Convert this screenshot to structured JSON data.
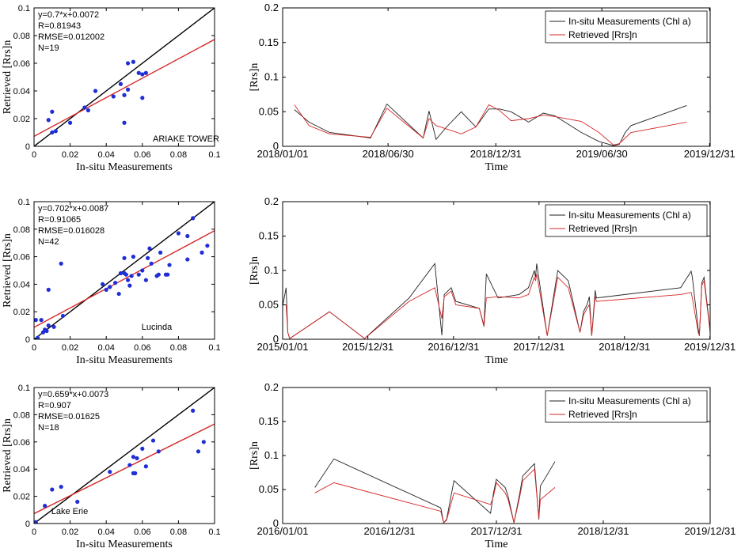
{
  "colors": {
    "insitu": "#222222",
    "retrieved": "#d62728",
    "points": "#1f2ed6",
    "identity": "#000000",
    "fit": "#d62728"
  },
  "chart_data": [
    {
      "type": "scatter",
      "xlabel": "In-situ Measurements",
      "ylabel": "Retrieved [Rrs]n",
      "xlim": [
        0,
        0.1
      ],
      "ylim": [
        0,
        0.1
      ],
      "xticks": [
        "0",
        "0.02",
        "0.04",
        "0.06",
        "0.08",
        "0.1"
      ],
      "yticks": [
        "0",
        "0.02",
        "0.04",
        "0.06",
        "0.08",
        "0.1"
      ],
      "xtick_values": [
        0,
        0.02,
        0.04,
        0.06,
        0.08,
        0.1
      ],
      "ytick_values": [
        0,
        0.02,
        0.04,
        0.06,
        0.08,
        0.1
      ],
      "stats": [
        "y=0.7*x+0.0072",
        "R=0.81943",
        "RMSE=0.012002",
        "N=19"
      ],
      "site": "ARIAKE TOWER",
      "fit": {
        "slope": 0.7,
        "intercept": 0.0072
      },
      "points": [
        [
          0.008,
          0.019
        ],
        [
          0.01,
          0.025
        ],
        [
          0.01,
          0.01
        ],
        [
          0.012,
          0.011
        ],
        [
          0.02,
          0.017
        ],
        [
          0.028,
          0.028
        ],
        [
          0.03,
          0.026
        ],
        [
          0.034,
          0.04
        ],
        [
          0.044,
          0.036
        ],
        [
          0.048,
          0.045
        ],
        [
          0.05,
          0.037
        ],
        [
          0.052,
          0.041
        ],
        [
          0.05,
          0.017
        ],
        [
          0.052,
          0.06
        ],
        [
          0.055,
          0.061
        ],
        [
          0.058,
          0.053
        ],
        [
          0.06,
          0.035
        ],
        [
          0.062,
          0.053
        ],
        [
          0.06,
          0.052
        ]
      ]
    },
    {
      "type": "line",
      "xlabel": "Time",
      "ylabel": "[Rrs]n",
      "ylim": [
        0,
        0.2
      ],
      "yticks": [
        "0",
        "0.05",
        "0.1",
        "0.15",
        "0.2"
      ],
      "ytick_values": [
        0,
        0.05,
        0.1,
        0.15,
        0.2
      ],
      "xlim": [
        0,
        730
      ],
      "xticks": [
        "2018/01/01",
        "2018/06/30",
        "2018/12/31",
        "2019/06/30",
        "2019/12/31"
      ],
      "xtick_values": [
        0,
        180,
        364,
        545,
        729
      ],
      "legend": [
        "In-situ Measurements (Chl a)",
        "Retrieved [Rrs]n"
      ],
      "series": [
        {
          "name": "In-situ Measurements (Chl a)",
          "x": [
            20,
            45,
            80,
            150,
            178,
            240,
            250,
            262,
            280,
            305,
            330,
            352,
            370,
            390,
            420,
            445,
            465,
            510,
            540,
            565,
            575,
            585,
            595,
            690
          ],
          "y": [
            0.053,
            0.035,
            0.02,
            0.012,
            0.061,
            0.012,
            0.051,
            0.01,
            0.028,
            0.05,
            0.028,
            0.054,
            0.054,
            0.05,
            0.035,
            0.048,
            0.044,
            0.02,
            0.007,
            0.001,
            0.003,
            0.02,
            0.03,
            0.059
          ]
        },
        {
          "name": "Retrieved [Rrs]n",
          "x": [
            20,
            45,
            80,
            150,
            178,
            240,
            250,
            262,
            280,
            305,
            330,
            352,
            370,
            390,
            420,
            445,
            465,
            510,
            540,
            565,
            575,
            585,
            595,
            690
          ],
          "y": [
            0.06,
            0.03,
            0.018,
            0.013,
            0.055,
            0.012,
            0.04,
            0.03,
            0.025,
            0.018,
            0.028,
            0.06,
            0.052,
            0.037,
            0.04,
            0.045,
            0.043,
            0.036,
            0.02,
            0.002,
            0.004,
            0.012,
            0.02,
            0.035
          ]
        }
      ]
    },
    {
      "type": "scatter",
      "xlabel": "In-situ Measurements",
      "ylabel": "Retrieved [Rrs]n",
      "xlim": [
        0,
        0.1
      ],
      "ylim": [
        0,
        0.1
      ],
      "xticks": [
        "0",
        "0.02",
        "0.04",
        "0.06",
        "0.08",
        "0.1"
      ],
      "yticks": [
        "0",
        "0.02",
        "0.04",
        "0.06",
        "0.08",
        "0.1"
      ],
      "xtick_values": [
        0,
        0.02,
        0.04,
        0.06,
        0.08,
        0.1
      ],
      "ytick_values": [
        0,
        0.02,
        0.04,
        0.06,
        0.08,
        0.1
      ],
      "stats": [
        "y=0.702*x+0.0087",
        "R=0.91065",
        "RMSE=0.016028",
        "N=42"
      ],
      "site": "Lucinda",
      "fit": {
        "slope": 0.702,
        "intercept": 0.0087
      },
      "points": [
        [
          0.001,
          0.014
        ],
        [
          0.002,
          0.001
        ],
        [
          0.004,
          0.014
        ],
        [
          0.005,
          0.005
        ],
        [
          0.006,
          0.007
        ],
        [
          0.007,
          0.006
        ],
        [
          0.008,
          0.036
        ],
        [
          0.008,
          0.01
        ],
        [
          0.011,
          0.009
        ],
        [
          0.015,
          0.055
        ],
        [
          0.016,
          0.017
        ],
        [
          0.038,
          0.04
        ],
        [
          0.04,
          0.036
        ],
        [
          0.042,
          0.038
        ],
        [
          0.045,
          0.041
        ],
        [
          0.047,
          0.033
        ],
        [
          0.048,
          0.048
        ],
        [
          0.05,
          0.059
        ],
        [
          0.05,
          0.048
        ],
        [
          0.051,
          0.047
        ],
        [
          0.052,
          0.043
        ],
        [
          0.053,
          0.039
        ],
        [
          0.054,
          0.046
        ],
        [
          0.055,
          0.06
        ],
        [
          0.058,
          0.047
        ],
        [
          0.06,
          0.05
        ],
        [
          0.062,
          0.043
        ],
        [
          0.063,
          0.059
        ],
        [
          0.064,
          0.066
        ],
        [
          0.065,
          0.055
        ],
        [
          0.068,
          0.046
        ],
        [
          0.069,
          0.047
        ],
        [
          0.07,
          0.063
        ],
        [
          0.073,
          0.047
        ],
        [
          0.074,
          0.047
        ],
        [
          0.075,
          0.054
        ],
        [
          0.08,
          0.077
        ],
        [
          0.085,
          0.075
        ],
        [
          0.085,
          0.058
        ],
        [
          0.088,
          0.088
        ],
        [
          0.093,
          0.063
        ],
        [
          0.096,
          0.068
        ]
      ]
    },
    {
      "type": "line",
      "xlabel": "Time",
      "ylabel": "[Rrs]n",
      "ylim": [
        0,
        0.2
      ],
      "yticks": [
        "0",
        "0.05",
        "0.1",
        "0.15",
        "0.2"
      ],
      "ytick_values": [
        0,
        0.05,
        0.1,
        0.15,
        0.2
      ],
      "xlim": [
        0,
        1826
      ],
      "xticks": [
        "2015/01/01",
        "2015/12/31",
        "2016/12/31",
        "2017/12/31",
        "2018/12/31",
        "2019/12/31"
      ],
      "xtick_values": [
        0,
        364,
        730,
        1095,
        1460,
        1825
      ],
      "legend": [
        "In-situ Measurements (Chl a)",
        "Retrieved [Rrs]n"
      ],
      "series": [
        {
          "name": "In-situ Measurements (Chl a)",
          "x": [
            0,
            15,
            22,
            30,
            200,
            350,
            540,
            650,
            680,
            690,
            720,
            740,
            840,
            860,
            870,
            920,
            1010,
            1050,
            1075,
            1080,
            1085,
            1130,
            1175,
            1220,
            1270,
            1285,
            1300,
            1310,
            1320,
            1335,
            1340,
            1700,
            1745,
            1750,
            1775,
            1780,
            1790,
            1800,
            1826
          ],
          "y": [
            0.048,
            0.075,
            0.01,
            0.001,
            0.04,
            0.001,
            0.06,
            0.11,
            0.006,
            0.065,
            0.075,
            0.055,
            0.045,
            0.02,
            0.095,
            0.06,
            0.065,
            0.075,
            0.1,
            0.09,
            0.11,
            0.005,
            0.1,
            0.085,
            0.01,
            0.04,
            0.05,
            0.062,
            0.005,
            0.071,
            0.06,
            0.075,
            0.099,
            0.09,
            0.015,
            0.005,
            0.082,
            0.09,
            0.012
          ]
        },
        {
          "name": "Retrieved [Rrs]n",
          "x": [
            0,
            15,
            22,
            30,
            200,
            350,
            540,
            650,
            680,
            690,
            720,
            740,
            840,
            860,
            870,
            920,
            1010,
            1050,
            1075,
            1080,
            1085,
            1130,
            1175,
            1220,
            1270,
            1285,
            1300,
            1310,
            1320,
            1335,
            1340,
            1700,
            1745,
            1750,
            1775,
            1780,
            1790,
            1800,
            1826
          ],
          "y": [
            0.05,
            0.05,
            0.01,
            0.001,
            0.04,
            0.001,
            0.055,
            0.075,
            0.03,
            0.062,
            0.07,
            0.05,
            0.045,
            0.018,
            0.06,
            0.062,
            0.06,
            0.065,
            0.09,
            0.085,
            0.095,
            0.005,
            0.09,
            0.075,
            0.01,
            0.035,
            0.045,
            0.05,
            0.005,
            0.063,
            0.055,
            0.065,
            0.068,
            0.06,
            0.01,
            0.005,
            0.078,
            0.085,
            0.01
          ]
        }
      ]
    },
    {
      "type": "scatter",
      "xlabel": "In-situ Measurements",
      "ylabel": "Retrieved [Rrs]n",
      "xlim": [
        0,
        0.1
      ],
      "ylim": [
        0,
        0.1
      ],
      "xticks": [
        "0",
        "0.02",
        "0.04",
        "0.06",
        "0.08",
        "0.1"
      ],
      "yticks": [
        "0",
        "0.02",
        "0.04",
        "0.06",
        "0.08",
        "0.1"
      ],
      "xtick_values": [
        0,
        0.02,
        0.04,
        0.06,
        0.08,
        0.1
      ],
      "ytick_values": [
        0,
        0.02,
        0.04,
        0.06,
        0.08,
        0.1
      ],
      "stats": [
        "y=0.659*x+0.0073",
        "R=0.907",
        "RMSE=0.01625",
        "N=18"
      ],
      "site": "Lake Erie",
      "fit": {
        "slope": 0.659,
        "intercept": 0.0073
      },
      "points": [
        [
          0.001,
          0.001
        ],
        [
          0.006,
          0.013
        ],
        [
          0.01,
          0.025
        ],
        [
          0.015,
          0.027
        ],
        [
          0.024,
          0.016
        ],
        [
          0.042,
          0.038
        ],
        [
          0.053,
          0.043
        ],
        [
          0.055,
          0.049
        ],
        [
          0.056,
          0.037
        ],
        [
          0.057,
          0.048
        ],
        [
          0.06,
          0.055
        ],
        [
          0.062,
          0.042
        ],
        [
          0.066,
          0.061
        ],
        [
          0.069,
          0.053
        ],
        [
          0.088,
          0.083
        ],
        [
          0.091,
          0.053
        ],
        [
          0.094,
          0.06
        ],
        [
          0.055,
          0.037
        ]
      ]
    },
    {
      "type": "line",
      "xlabel": "Time",
      "ylabel": "[Rrs]n",
      "ylim": [
        0,
        0.2
      ],
      "yticks": [
        "0",
        "0.05",
        "0.1",
        "0.15",
        "0.2"
      ],
      "ytick_values": [
        0,
        0.05,
        0.1,
        0.15,
        0.2
      ],
      "xlim": [
        0,
        1460
      ],
      "xticks": [
        "2016/01/01",
        "2016/12/31",
        "2017/12/31",
        "2018/12/31",
        "2019/12/31"
      ],
      "xtick_values": [
        0,
        365,
        730,
        1095,
        1460
      ],
      "legend": [
        "In-situ Measurements (Chl a)",
        "Retrieved [Rrs]n"
      ],
      "series": [
        {
          "name": "In-situ Measurements (Chl a)",
          "x": [
            110,
            175,
            540,
            550,
            560,
            585,
            710,
            720,
            730,
            760,
            770,
            790,
            810,
            820,
            860,
            875,
            880,
            930
          ],
          "y": [
            0.053,
            0.095,
            0.023,
            0.001,
            0.006,
            0.063,
            0.015,
            0.045,
            0.065,
            0.053,
            0.04,
            0.001,
            0.045,
            0.07,
            0.088,
            0.006,
            0.055,
            0.091
          ]
        },
        {
          "name": "Retrieved [Rrs]n",
          "x": [
            110,
            175,
            540,
            550,
            560,
            585,
            710,
            720,
            730,
            760,
            770,
            790,
            810,
            820,
            860,
            875,
            880,
            930
          ],
          "y": [
            0.045,
            0.06,
            0.018,
            0.001,
            0.005,
            0.045,
            0.028,
            0.04,
            0.06,
            0.045,
            0.035,
            0.001,
            0.04,
            0.063,
            0.08,
            0.008,
            0.035,
            0.053
          ]
        }
      ]
    }
  ]
}
